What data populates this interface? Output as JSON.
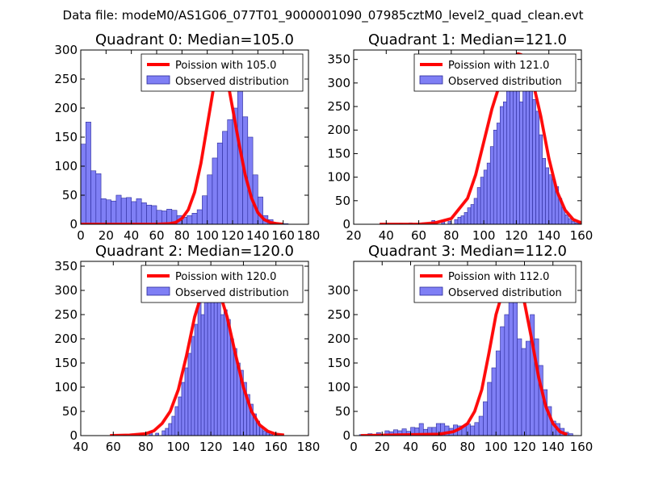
{
  "figure": {
    "title": "Data file: modeM0/AS1G06_077T01_9000001090_07985cztM0_level2_quad_clean.evt",
    "colors": {
      "bar_fill": "#7f7ff5",
      "bar_edge": "#2a2a9a",
      "curve": "#ff0000",
      "axes": "#000000"
    }
  },
  "chart_data": [
    {
      "type": "bar",
      "title": "Quadrant 0: Median=105.0",
      "xlabel": "",
      "ylabel": "",
      "xlim": [
        0,
        180
      ],
      "ylim": [
        0,
        300
      ],
      "xticks": [
        0,
        20,
        40,
        60,
        80,
        100,
        120,
        140,
        160,
        180
      ],
      "yticks": [
        0,
        50,
        100,
        150,
        200,
        250,
        300
      ],
      "legend": {
        "position": "top-right",
        "curve_label": "Poission with 105.0",
        "bar_label": "Observed distribution"
      },
      "bin_width": 4,
      "bins": [
        [
          0,
          138
        ],
        [
          4,
          176
        ],
        [
          8,
          92
        ],
        [
          12,
          87
        ],
        [
          16,
          44
        ],
        [
          20,
          42
        ],
        [
          24,
          40
        ],
        [
          28,
          50
        ],
        [
          32,
          45
        ],
        [
          36,
          46
        ],
        [
          40,
          39
        ],
        [
          44,
          44
        ],
        [
          48,
          37
        ],
        [
          52,
          33
        ],
        [
          56,
          32
        ],
        [
          60,
          24
        ],
        [
          64,
          23
        ],
        [
          68,
          26
        ],
        [
          72,
          24
        ],
        [
          76,
          15
        ],
        [
          80,
          12
        ],
        [
          84,
          15
        ],
        [
          88,
          19
        ],
        [
          92,
          25
        ],
        [
          96,
          49
        ],
        [
          100,
          85
        ],
        [
          104,
          114
        ],
        [
          108,
          140
        ],
        [
          112,
          160
        ],
        [
          116,
          180
        ],
        [
          120,
          200
        ],
        [
          124,
          285
        ],
        [
          128,
          185
        ],
        [
          132,
          150
        ],
        [
          136,
          85
        ],
        [
          140,
          47
        ],
        [
          144,
          15
        ],
        [
          148,
          8
        ],
        [
          152,
          3
        ],
        [
          156,
          1
        ],
        [
          160,
          1
        ]
      ],
      "series": [
        {
          "name": "Poission with 105.0",
          "kind": "line",
          "x": [
            0,
            60,
            70,
            75,
            80,
            85,
            90,
            95,
            100,
            105,
            108,
            110,
            112,
            115,
            120,
            125,
            130,
            135,
            140,
            145,
            150,
            155,
            160
          ],
          "y": [
            0,
            0,
            1,
            3,
            10,
            25,
            55,
            105,
            170,
            235,
            265,
            285,
            285,
            260,
            200,
            140,
            85,
            45,
            20,
            8,
            3,
            1,
            0
          ]
        }
      ]
    },
    {
      "type": "bar",
      "title": "Quadrant 1: Median=121.0",
      "xlabel": "",
      "ylabel": "",
      "xlim": [
        20,
        160
      ],
      "ylim": [
        0,
        370
      ],
      "xticks": [
        20,
        40,
        60,
        80,
        100,
        120,
        140,
        160
      ],
      "yticks": [
        0,
        50,
        100,
        150,
        200,
        250,
        300,
        350
      ],
      "legend": {
        "position": "top-right",
        "curve_label": "Poission with 121.0",
        "bar_label": "Observed distribution"
      },
      "bin_width": 2,
      "bins": [
        [
          36,
          1
        ],
        [
          48,
          2
        ],
        [
          54,
          3
        ],
        [
          62,
          3
        ],
        [
          68,
          8
        ],
        [
          74,
          5
        ],
        [
          78,
          6
        ],
        [
          82,
          10
        ],
        [
          84,
          15
        ],
        [
          86,
          18
        ],
        [
          88,
          25
        ],
        [
          90,
          35
        ],
        [
          92,
          42
        ],
        [
          94,
          55
        ],
        [
          96,
          78
        ],
        [
          98,
          100
        ],
        [
          100,
          115
        ],
        [
          102,
          130
        ],
        [
          104,
          165
        ],
        [
          106,
          200
        ],
        [
          108,
          215
        ],
        [
          110,
          250
        ],
        [
          112,
          260
        ],
        [
          114,
          320
        ],
        [
          116,
          355
        ],
        [
          118,
          345
        ],
        [
          120,
          335
        ],
        [
          122,
          260
        ],
        [
          124,
          300
        ],
        [
          126,
          350
        ],
        [
          128,
          340
        ],
        [
          130,
          265
        ],
        [
          132,
          240
        ],
        [
          134,
          190
        ],
        [
          136,
          140
        ],
        [
          138,
          120
        ],
        [
          140,
          105
        ],
        [
          142,
          95
        ],
        [
          144,
          80
        ],
        [
          146,
          55
        ],
        [
          148,
          35
        ],
        [
          150,
          20
        ],
        [
          152,
          12
        ],
        [
          154,
          6
        ],
        [
          156,
          3
        ],
        [
          158,
          2
        ]
      ],
      "series": [
        {
          "name": "Poission with 121.0",
          "kind": "line",
          "x": [
            36,
            60,
            70,
            80,
            90,
            95,
            100,
            105,
            110,
            115,
            119,
            121,
            123,
            125,
            130,
            135,
            140,
            145,
            150,
            155,
            160
          ],
          "y": [
            0,
            0,
            3,
            12,
            55,
            105,
            175,
            245,
            300,
            340,
            355,
            362,
            360,
            350,
            305,
            230,
            140,
            70,
            30,
            10,
            3
          ]
        }
      ]
    },
    {
      "type": "bar",
      "title": "Quadrant 2: Median=120.0",
      "xlabel": "",
      "ylabel": "",
      "xlim": [
        40,
        180
      ],
      "ylim": [
        0,
        360
      ],
      "xticks": [
        40,
        60,
        80,
        100,
        120,
        140,
        160,
        180
      ],
      "yticks": [
        0,
        50,
        100,
        150,
        200,
        250,
        300,
        350
      ],
      "legend": {
        "position": "top-right",
        "curve_label": "Poission with 120.0",
        "bar_label": "Observed distribution"
      },
      "bin_width": 2,
      "bins": [
        [
          66,
          1
        ],
        [
          76,
          3
        ],
        [
          82,
          8
        ],
        [
          86,
          5
        ],
        [
          90,
          10
        ],
        [
          92,
          15
        ],
        [
          94,
          25
        ],
        [
          96,
          40
        ],
        [
          98,
          60
        ],
        [
          100,
          80
        ],
        [
          102,
          110
        ],
        [
          104,
          140
        ],
        [
          106,
          170
        ],
        [
          108,
          205
        ],
        [
          110,
          230
        ],
        [
          112,
          275
        ],
        [
          114,
          250
        ],
        [
          116,
          290
        ],
        [
          118,
          285
        ],
        [
          120,
          305
        ],
        [
          122,
          330
        ],
        [
          124,
          300
        ],
        [
          126,
          250
        ],
        [
          128,
          260
        ],
        [
          130,
          240
        ],
        [
          132,
          200
        ],
        [
          134,
          180
        ],
        [
          136,
          150
        ],
        [
          138,
          135
        ],
        [
          140,
          110
        ],
        [
          142,
          85
        ],
        [
          144,
          65
        ],
        [
          146,
          45
        ],
        [
          148,
          30
        ],
        [
          150,
          18
        ],
        [
          152,
          10
        ],
        [
          154,
          6
        ],
        [
          156,
          3
        ],
        [
          160,
          2
        ]
      ],
      "series": [
        {
          "name": "Poission with 120.0",
          "kind": "line",
          "x": [
            58,
            70,
            80,
            85,
            90,
            95,
            100,
            105,
            110,
            115,
            118,
            120,
            122,
            125,
            130,
            135,
            140,
            145,
            150,
            155,
            160,
            165
          ],
          "y": [
            0,
            1,
            4,
            10,
            25,
            50,
            95,
            165,
            245,
            300,
            328,
            332,
            328,
            300,
            245,
            170,
            100,
            50,
            22,
            9,
            3,
            1
          ]
        }
      ]
    },
    {
      "type": "bar",
      "title": "Quadrant 3: Median=112.0",
      "xlabel": "",
      "ylabel": "",
      "xlim": [
        0,
        160
      ],
      "ylim": [
        0,
        360
      ],
      "xticks": [
        0,
        20,
        40,
        60,
        80,
        100,
        120,
        140,
        160
      ],
      "yticks": [
        0,
        50,
        100,
        150,
        200,
        250,
        300
      ],
      "legend": {
        "position": "top-right",
        "curve_label": "Poission with 112.0",
        "bar_label": "Observed distribution"
      },
      "bin_width": 3,
      "bins": [
        [
          4,
          2
        ],
        [
          10,
          4
        ],
        [
          16,
          6
        ],
        [
          22,
          10
        ],
        [
          25,
          8
        ],
        [
          28,
          12
        ],
        [
          31,
          10
        ],
        [
          34,
          14
        ],
        [
          37,
          9
        ],
        [
          40,
          17
        ],
        [
          43,
          16
        ],
        [
          46,
          25
        ],
        [
          49,
          13
        ],
        [
          52,
          17
        ],
        [
          55,
          17
        ],
        [
          58,
          25
        ],
        [
          61,
          25
        ],
        [
          64,
          20
        ],
        [
          67,
          15
        ],
        [
          70,
          22
        ],
        [
          73,
          20
        ],
        [
          76,
          20
        ],
        [
          79,
          24
        ],
        [
          82,
          20
        ],
        [
          85,
          27
        ],
        [
          88,
          40
        ],
        [
          91,
          70
        ],
        [
          94,
          110
        ],
        [
          97,
          140
        ],
        [
          100,
          175
        ],
        [
          103,
          225
        ],
        [
          106,
          250
        ],
        [
          109,
          295
        ],
        [
          112,
          300
        ],
        [
          115,
          200
        ],
        [
          118,
          180
        ],
        [
          121,
          195
        ],
        [
          124,
          250
        ],
        [
          127,
          200
        ],
        [
          130,
          145
        ],
        [
          133,
          95
        ],
        [
          136,
          60
        ],
        [
          139,
          30
        ],
        [
          142,
          25
        ],
        [
          145,
          15
        ],
        [
          148,
          7
        ],
        [
          151,
          4
        ]
      ],
      "series": [
        {
          "name": "Poission with 112.0",
          "kind": "line",
          "x": [
            5,
            60,
            70,
            75,
            80,
            85,
            90,
            95,
            100,
            105,
            110,
            112,
            114,
            120,
            125,
            130,
            135,
            140,
            145,
            150
          ],
          "y": [
            0,
            3,
            8,
            15,
            25,
            50,
            95,
            170,
            250,
            300,
            328,
            330,
            325,
            275,
            200,
            120,
            60,
            25,
            8,
            2
          ]
        }
      ]
    }
  ]
}
